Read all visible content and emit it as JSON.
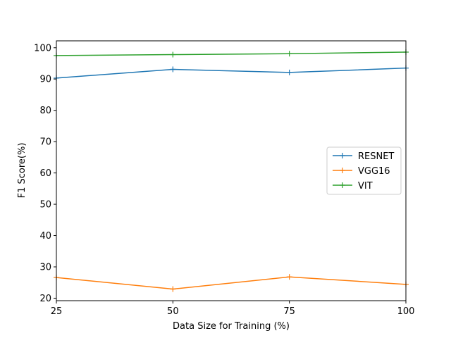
{
  "chart_data": {
    "type": "line",
    "title": "",
    "xlabel": "Data Size for Training (%)",
    "ylabel": "F1 Score(%)",
    "x": [
      25,
      50,
      75,
      100
    ],
    "xlim": [
      25,
      100
    ],
    "ylim": [
      19.2,
      102.2
    ],
    "xticks": [
      25,
      50,
      75,
      100
    ],
    "yticks": [
      20,
      30,
      40,
      50,
      60,
      70,
      80,
      90,
      100
    ],
    "grid": false,
    "legend_position": "center-right",
    "series": [
      {
        "name": "RESNET",
        "color": "#1f77b4",
        "values": [
          90.3,
          93.1,
          92.1,
          93.5
        ]
      },
      {
        "name": "VGG16",
        "color": "#ff7f0e",
        "values": [
          26.6,
          22.9,
          26.8,
          24.4
        ]
      },
      {
        "name": "VIT",
        "color": "#2ca02c",
        "values": [
          97.5,
          97.8,
          98.1,
          98.6
        ]
      }
    ]
  }
}
